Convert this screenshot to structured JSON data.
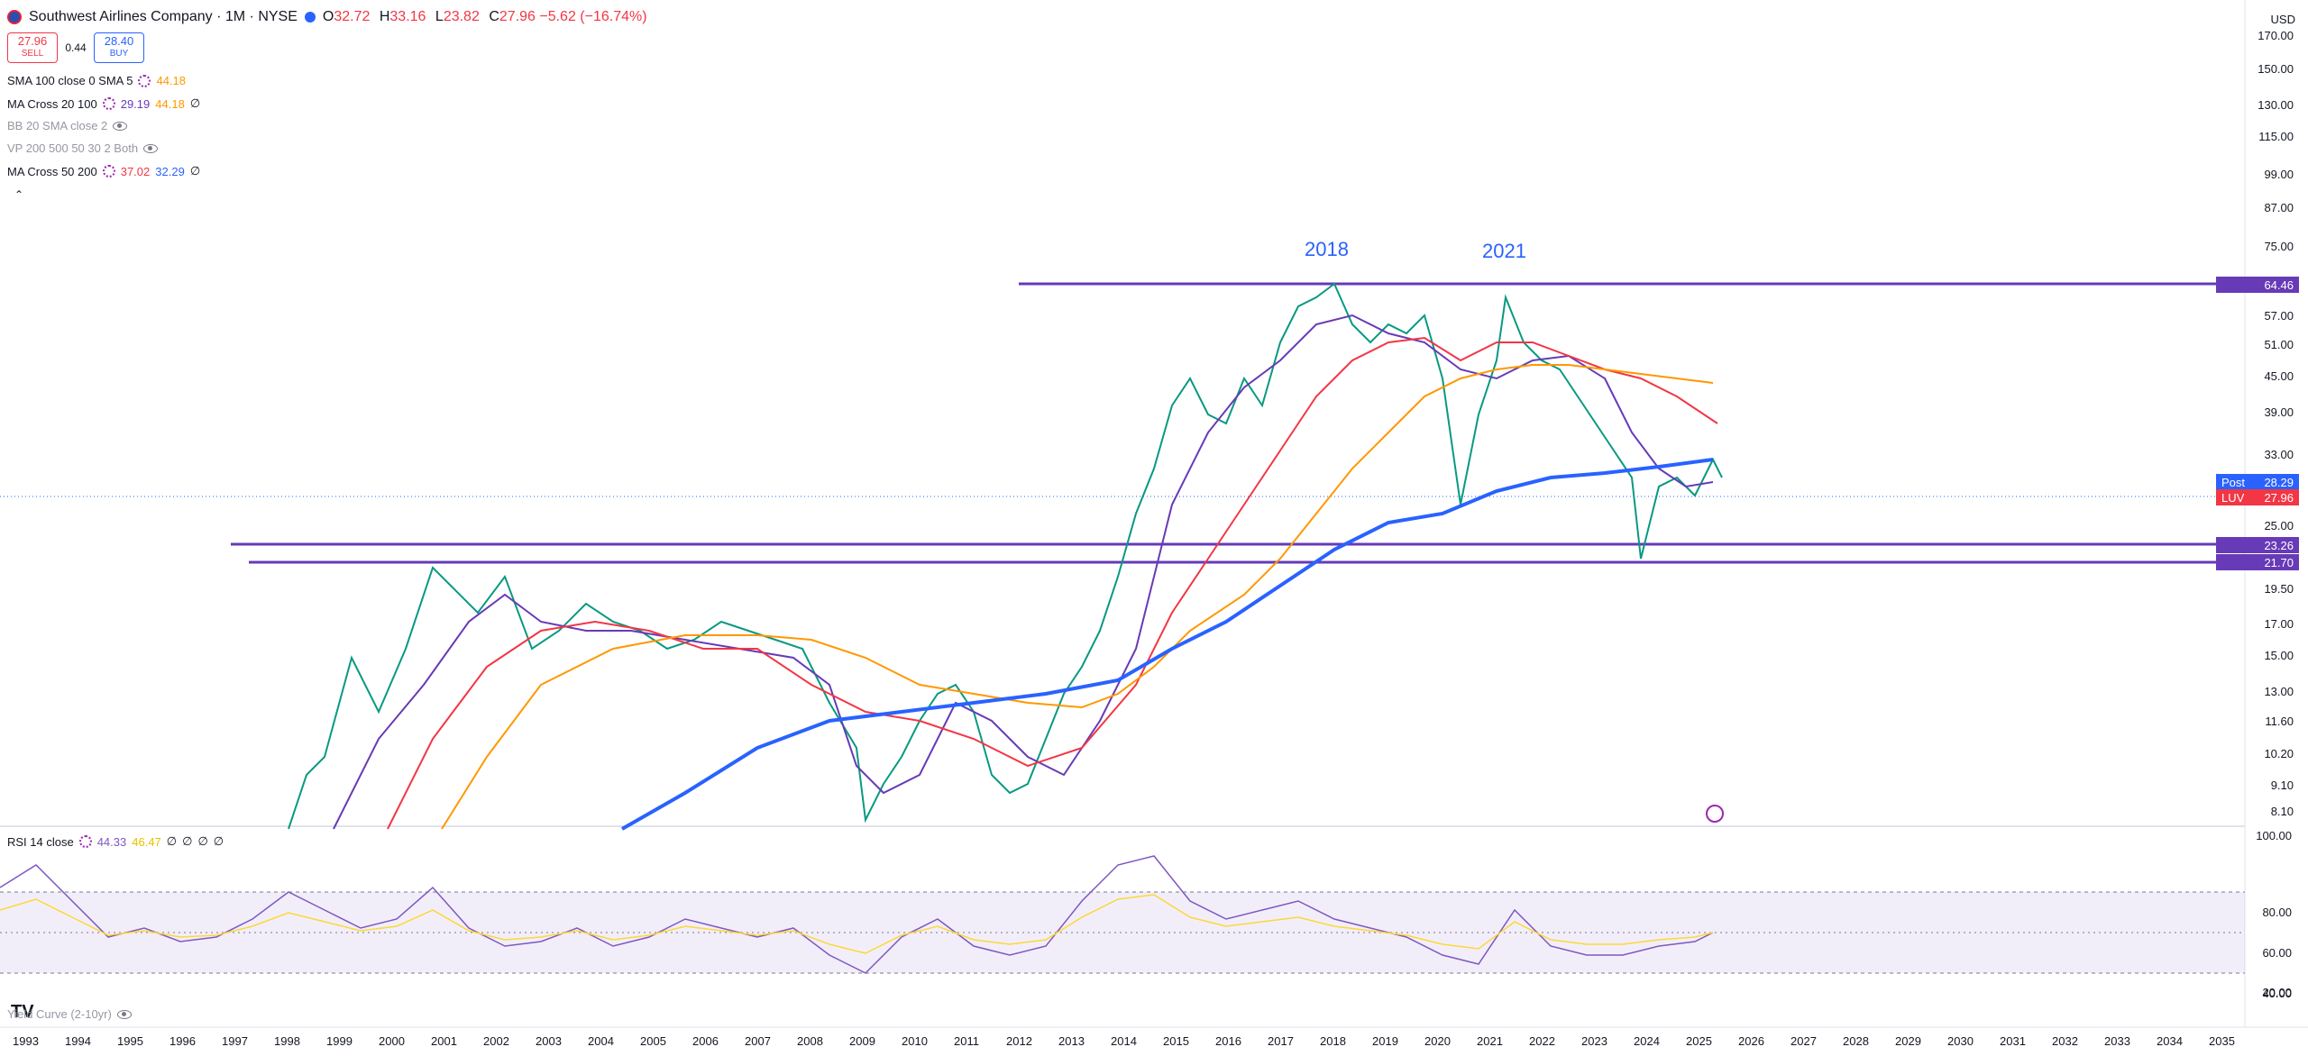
{
  "header": {
    "symbol_title": "Southwest Airlines Company · 1M · NYSE",
    "ohlc": [
      {
        "k": "O",
        "v": "32.72"
      },
      {
        "k": "H",
        "v": "33.16"
      },
      {
        "k": "L",
        "v": "23.82"
      },
      {
        "k": "C",
        "v": "27.96 −5.62 (−16.74%)"
      }
    ],
    "currency": "USD"
  },
  "trade": {
    "sell_price": "27.96",
    "sell_label": "SELL",
    "spread": "0.44",
    "buy_price": "28.40",
    "buy_label": "BUY"
  },
  "indicators": [
    {
      "name": "SMA 100 close 0 SMA 5",
      "values": [
        "44.18"
      ],
      "colors": [
        "#ff9800"
      ],
      "visible": true
    },
    {
      "name": "MA Cross 20 100",
      "values": [
        "29.19",
        "44.18",
        "∅"
      ],
      "colors": [
        "#673ab7",
        "#ff9800",
        "#131722"
      ],
      "visible": true
    },
    {
      "name": "BB 20 SMA close 2",
      "values": [],
      "colors": [],
      "visible": false
    },
    {
      "name": "VP 200 500 50 30 2 Both",
      "values": [],
      "colors": [],
      "visible": false
    },
    {
      "name": "MA Cross 50 200",
      "values": [
        "37.02",
        "32.29",
        "∅"
      ],
      "colors": [
        "#f23645",
        "#2962ff",
        "#131722"
      ],
      "visible": true
    }
  ],
  "price_axis": [
    "170.00",
    "150.00",
    "130.00",
    "115.00",
    "99.00",
    "87.00",
    "75.00",
    "57.00",
    "51.00",
    "45.00",
    "39.00",
    "33.00",
    "25.00",
    "19.50",
    "17.00",
    "15.00",
    "13.00",
    "11.60",
    "10.20",
    "9.10",
    "8.10"
  ],
  "price_tags": [
    {
      "text": "64.46",
      "color": "#673ab7"
    },
    {
      "label": "Post",
      "text": "28.29",
      "color": "#2962ff"
    },
    {
      "label": "LUV",
      "text": "27.96",
      "color": "#f23645"
    },
    {
      "text": "23.26",
      "color": "#673ab7"
    },
    {
      "text": "21.70",
      "color": "#673ab7"
    }
  ],
  "annotations": [
    "2018",
    "2021"
  ],
  "x_axis": [
    "1993",
    "1994",
    "1995",
    "1996",
    "1997",
    "1998",
    "1999",
    "2000",
    "2001",
    "2002",
    "2003",
    "2004",
    "2005",
    "2006",
    "2007",
    "2008",
    "2009",
    "2010",
    "2011",
    "2012",
    "2013",
    "2014",
    "2015",
    "2016",
    "2017",
    "2018",
    "2019",
    "2020",
    "2021",
    "2022",
    "2023",
    "2024",
    "2025",
    "2026",
    "2027",
    "2028",
    "2029",
    "2030",
    "2031",
    "2032",
    "2033",
    "2034",
    "2035"
  ],
  "rsi": {
    "label": "RSI 14 close",
    "values": [
      "44.33",
      "46.47",
      "∅",
      "∅",
      "∅",
      "∅"
    ],
    "colors": [
      "#7e57c2",
      "#fdd835",
      "#131722",
      "#131722",
      "#131722",
      "#131722"
    ],
    "axis": [
      "100.00",
      "80.00",
      "60.00",
      "40.00",
      "20.00"
    ]
  },
  "yield_curve": "Yield Curve (2-10yr)",
  "colors": {
    "up": "#089981",
    "down": "#f23645",
    "ma_purple": "#673ab7",
    "ma_red": "#f23645",
    "ma_orange": "#ff9800",
    "ma_blue": "#2962ff"
  },
  "icons": [
    "eye-icon",
    "settings-icon",
    "chevron-up-icon",
    "tradingview-logo-icon",
    "replay-icon"
  ]
}
